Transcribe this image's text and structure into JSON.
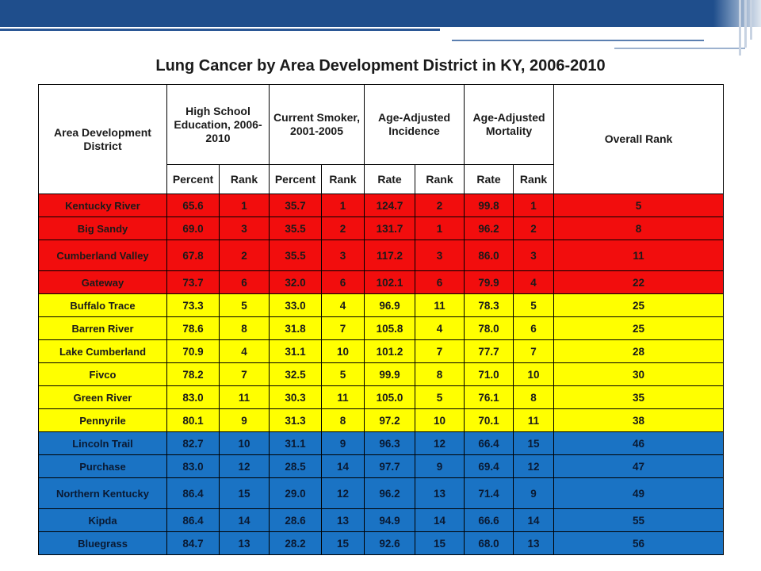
{
  "title": "Lung Cancer by Area Development District in KY, 2006-2010",
  "headers": {
    "district": "Area Development District",
    "hs": "High School Education, 2006-2010",
    "smoker": "Current Smoker, 2001-2005",
    "incidence": "Age-Adjusted Incidence",
    "mortality": "Age-Adjusted Mortality",
    "overall": "Overall Rank",
    "percent": "Percent",
    "rank": "Rank",
    "rate": "Rate"
  },
  "colors": {
    "top_bar": "#1f4e8c",
    "red_group": "#f20d0d",
    "yellow_group": "#ffff00",
    "blue_group": "#1a73c4"
  },
  "rows": [
    {
      "district": "Kentucky River",
      "hs_pct": "65.6",
      "hs_rank": "1",
      "smk_pct": "35.7",
      "smk_rank": "1",
      "inc_rate": "124.7",
      "inc_rank": "2",
      "mort_rate": "99.8",
      "mort_rank": "1",
      "overall": "5",
      "group": "red"
    },
    {
      "district": "Big Sandy",
      "hs_pct": "69.0",
      "hs_rank": "3",
      "smk_pct": "35.5",
      "smk_rank": "2",
      "inc_rate": "131.7",
      "inc_rank": "1",
      "mort_rate": "96.2",
      "mort_rank": "2",
      "overall": "8",
      "group": "red"
    },
    {
      "district": "Cumberland Valley",
      "hs_pct": "67.8",
      "hs_rank": "2",
      "smk_pct": "35.5",
      "smk_rank": "3",
      "inc_rate": "117.2",
      "inc_rank": "3",
      "mort_rate": "86.0",
      "mort_rank": "3",
      "overall": "11",
      "group": "red"
    },
    {
      "district": "Gateway",
      "hs_pct": "73.7",
      "hs_rank": "6",
      "smk_pct": "32.0",
      "smk_rank": "6",
      "inc_rate": "102.1",
      "inc_rank": "6",
      "mort_rate": "79.9",
      "mort_rank": "4",
      "overall": "22",
      "group": "red"
    },
    {
      "district": "Buffalo Trace",
      "hs_pct": "73.3",
      "hs_rank": "5",
      "smk_pct": "33.0",
      "smk_rank": "4",
      "inc_rate": "96.9",
      "inc_rank": "11",
      "mort_rate": "78.3",
      "mort_rank": "5",
      "overall": "25",
      "group": "yellow"
    },
    {
      "district": "Barren River",
      "hs_pct": "78.6",
      "hs_rank": "8",
      "smk_pct": "31.8",
      "smk_rank": "7",
      "inc_rate": "105.8",
      "inc_rank": "4",
      "mort_rate": "78.0",
      "mort_rank": "6",
      "overall": "25",
      "group": "yellow"
    },
    {
      "district": "Lake Cumberland",
      "hs_pct": "70.9",
      "hs_rank": "4",
      "smk_pct": "31.1",
      "smk_rank": "10",
      "inc_rate": "101.2",
      "inc_rank": "7",
      "mort_rate": "77.7",
      "mort_rank": "7",
      "overall": "28",
      "group": "yellow"
    },
    {
      "district": "Fivco",
      "hs_pct": "78.2",
      "hs_rank": "7",
      "smk_pct": "32.5",
      "smk_rank": "5",
      "inc_rate": "99.9",
      "inc_rank": "8",
      "mort_rate": "71.0",
      "mort_rank": "10",
      "overall": "30",
      "group": "yellow"
    },
    {
      "district": "Green River",
      "hs_pct": "83.0",
      "hs_rank": "11",
      "smk_pct": "30.3",
      "smk_rank": "11",
      "inc_rate": "105.0",
      "inc_rank": "5",
      "mort_rate": "76.1",
      "mort_rank": "8",
      "overall": "35",
      "group": "yellow"
    },
    {
      "district": "Pennyrile",
      "hs_pct": "80.1",
      "hs_rank": "9",
      "smk_pct": "31.3",
      "smk_rank": "8",
      "inc_rate": "97.2",
      "inc_rank": "10",
      "mort_rate": "70.1",
      "mort_rank": "11",
      "overall": "38",
      "group": "yellow"
    },
    {
      "district": "Lincoln Trail",
      "hs_pct": "82.7",
      "hs_rank": "10",
      "smk_pct": "31.1",
      "smk_rank": "9",
      "inc_rate": "96.3",
      "inc_rank": "12",
      "mort_rate": "66.4",
      "mort_rank": "15",
      "overall": "46",
      "group": "blue"
    },
    {
      "district": "Purchase",
      "hs_pct": "83.0",
      "hs_rank": "12",
      "smk_pct": "28.5",
      "smk_rank": "14",
      "inc_rate": "97.7",
      "inc_rank": "9",
      "mort_rate": "69.4",
      "mort_rank": "12",
      "overall": "47",
      "group": "blue"
    },
    {
      "district": "Northern Kentucky",
      "hs_pct": "86.4",
      "hs_rank": "15",
      "smk_pct": "29.0",
      "smk_rank": "12",
      "inc_rate": "96.2",
      "inc_rank": "13",
      "mort_rate": "71.4",
      "mort_rank": "9",
      "overall": "49",
      "group": "blue"
    },
    {
      "district": "Kipda",
      "hs_pct": "86.4",
      "hs_rank": "14",
      "smk_pct": "28.6",
      "smk_rank": "13",
      "inc_rate": "94.9",
      "inc_rank": "14",
      "mort_rate": "66.6",
      "mort_rank": "14",
      "overall": "55",
      "group": "blue"
    },
    {
      "district": "Bluegrass",
      "hs_pct": "84.7",
      "hs_rank": "13",
      "smk_pct": "28.2",
      "smk_rank": "15",
      "inc_rate": "92.6",
      "inc_rank": "15",
      "mort_rate": "68.0",
      "mort_rank": "13",
      "overall": "56",
      "group": "blue"
    }
  ]
}
